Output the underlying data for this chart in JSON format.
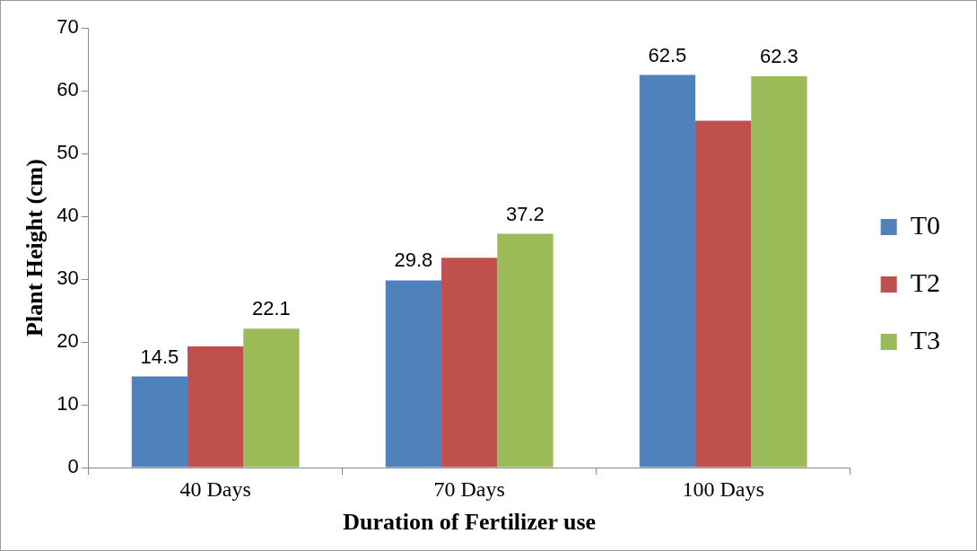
{
  "chart_data": {
    "type": "bar",
    "xlabel": "Duration of Fertilizer use",
    "ylabel": "Plant Height (cm)",
    "categories": [
      "40 Days",
      "70 Days",
      "100 Days"
    ],
    "series": [
      {
        "name": "T0",
        "color": "#4f81bd",
        "values": [
          14.5,
          29.8,
          62.5
        ],
        "value_labels": [
          "14.5",
          "29.8",
          "62.5"
        ]
      },
      {
        "name": "T2",
        "color": "#c0504d",
        "values": [
          19.3,
          33.4,
          55.2
        ],
        "value_labels": [
          null,
          null,
          null
        ]
      },
      {
        "name": "T3",
        "color": "#9bbb59",
        "values": [
          22.1,
          37.2,
          62.3
        ],
        "value_labels": [
          "22.1",
          "37.2",
          "62.3"
        ]
      }
    ],
    "ylim": [
      0,
      70
    ],
    "yticks": [
      0,
      10,
      20,
      30,
      40,
      50,
      60,
      70
    ],
    "grid": false,
    "legend": "right"
  }
}
